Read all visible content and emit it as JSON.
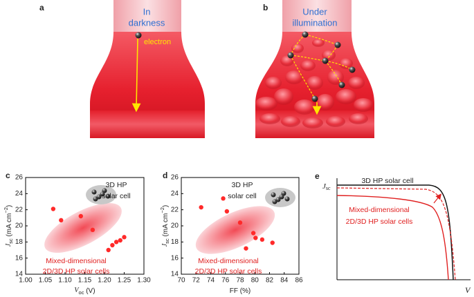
{
  "panels": {
    "a": {
      "label": "a",
      "text": [
        "In",
        "darkness"
      ],
      "electron": "electron"
    },
    "b": {
      "label": "b",
      "text": [
        "Under",
        "illumination"
      ]
    },
    "e": {
      "label": "e",
      "y_label": [
        "J",
        "sc"
      ],
      "x_label": "V",
      "annotations": [
        "3D HP solar cell",
        "Mixed-dimensional",
        "2D/3D HP solar cells"
      ]
    }
  },
  "chart_data": [
    {
      "type": "scatter",
      "label": "c",
      "x_label": [
        {
          "t": "V",
          "i": true
        },
        {
          "t": "oc",
          "sub": true
        },
        {
          "t": " (V)"
        }
      ],
      "y_label": [
        {
          "t": "J",
          "i": true
        },
        {
          "t": "sc",
          "sub": true
        },
        {
          "t": " (mA cm"
        },
        {
          "t": "−2",
          "sup": true
        },
        {
          "t": ")"
        }
      ],
      "annotations": {
        "top": [
          "3D HP",
          "solar cell"
        ],
        "bottom": [
          "Mixed-dimensional",
          "2D/3D HP solar cells"
        ]
      },
      "x": [
        1.07,
        1.09,
        1.14,
        1.17,
        1.21,
        1.22,
        1.23,
        1.24,
        1.25
      ],
      "values": [
        22.1,
        20.7,
        21.2,
        19.5,
        17.0,
        17.6,
        18.0,
        18.2,
        18.6
      ],
      "color": "#ff2a2a",
      "xlim": [
        1.0,
        1.3
      ],
      "xticks": [
        {
          "value": 1.0,
          "label": "1.00"
        },
        1.05,
        {
          "value": 1.1,
          "label": "1.10"
        },
        1.15,
        {
          "value": 1.2,
          "label": "1.20"
        },
        1.25,
        {
          "value": 1.3,
          "label": "1.30"
        }
      ],
      "ylim": [
        14,
        26
      ],
      "yticks": [
        14,
        16,
        18,
        20,
        22,
        24,
        26
      ]
    },
    {
      "type": "scatter",
      "label": "d",
      "x_label": [
        {
          "t": "FF (%)"
        }
      ],
      "y_label": [
        {
          "t": "J",
          "i": true
        },
        {
          "t": "sc",
          "sub": true
        },
        {
          "t": " (mA cm"
        },
        {
          "t": "−2",
          "sup": true
        },
        {
          "t": ")"
        }
      ],
      "annotations": {
        "top": [
          "3D HP",
          "solar cell"
        ],
        "bottom": [
          "Mixed-dimensional",
          "2D/3D HP solar cells"
        ]
      },
      "x": [
        72.7,
        75.7,
        76.2,
        78.0,
        78.8,
        79.8,
        80.1,
        81.0,
        82.4
      ],
      "values": [
        22.3,
        23.4,
        21.8,
        20.4,
        17.2,
        19.1,
        18.5,
        18.3,
        17.9
      ],
      "color": "#ff2a2a",
      "xlim": [
        70,
        86
      ],
      "xticks": [
        70,
        72,
        74,
        76,
        78,
        80,
        82,
        84,
        86
      ],
      "ylim": [
        14,
        26
      ],
      "yticks": [
        14,
        16,
        18,
        20,
        22,
        24,
        26
      ]
    }
  ]
}
